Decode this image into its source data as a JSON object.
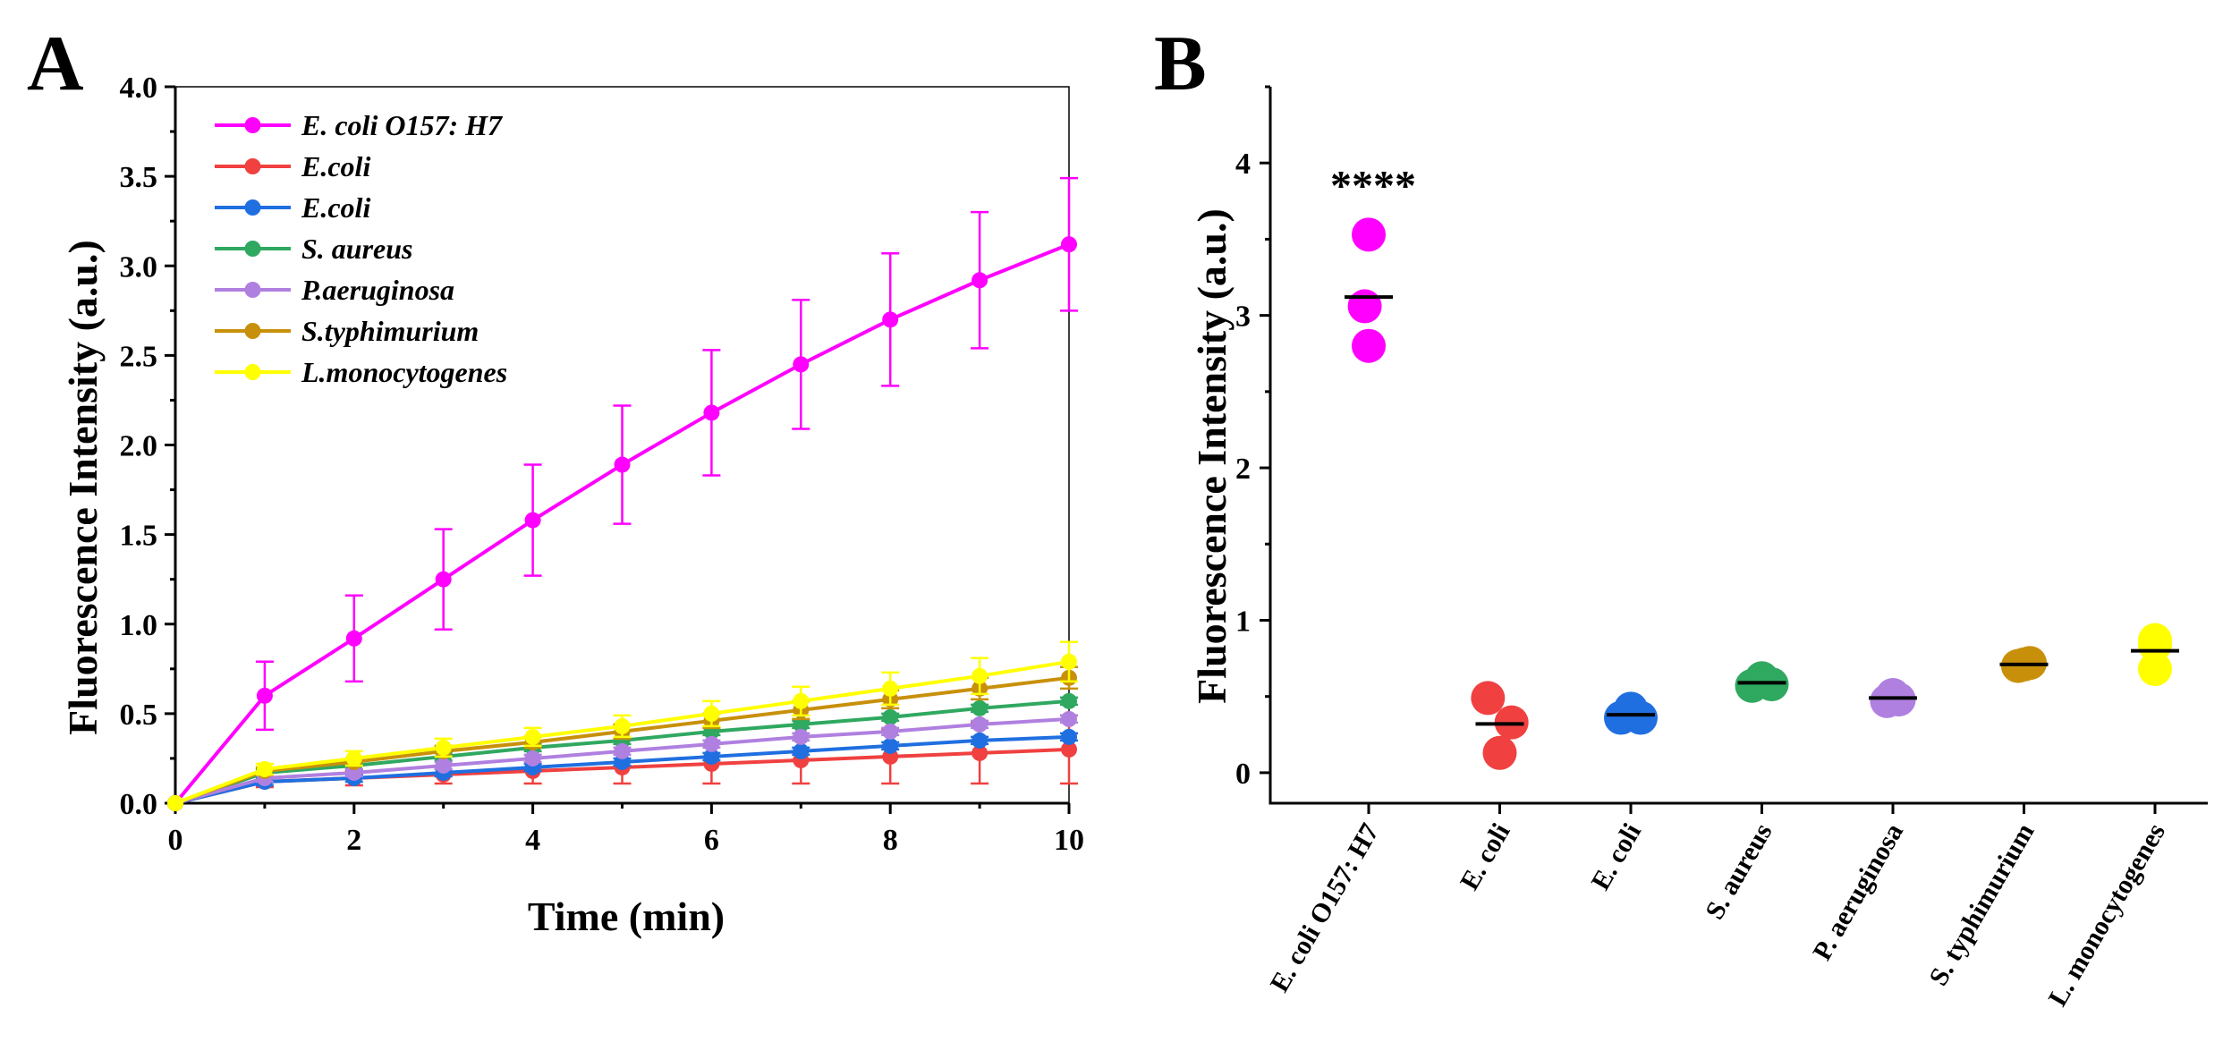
{
  "panels": {
    "a": {
      "label": "A"
    },
    "b": {
      "label": "B"
    }
  },
  "colors": {
    "magenta": "#ff00ff",
    "red": "#f04040",
    "blue": "#1f6fe0",
    "green": "#2fa860",
    "purple": "#b080e0",
    "gold": "#c8900a",
    "yellow": "#ffff00"
  },
  "chart_data": [
    {
      "id": "A",
      "type": "line",
      "title": "",
      "xlabel": "Time (min)",
      "ylabel": "Fluorescence Intensity (a.u.)",
      "xlim": [
        0,
        10
      ],
      "ylim": [
        0,
        4.0
      ],
      "xticks": [
        0,
        2,
        4,
        6,
        8,
        10
      ],
      "xtick_labels": [
        "0",
        "2",
        "4",
        "6",
        "8",
        "10"
      ],
      "yticks": [
        0,
        0.5,
        1.0,
        1.5,
        2.0,
        2.5,
        3.0,
        3.5,
        4.0
      ],
      "ytick_labels": [
        "0.0",
        "0.5",
        "1.0",
        "1.5",
        "2.0",
        "2.5",
        "3.0",
        "3.5",
        "4.0"
      ],
      "legend_position": "top-left",
      "x": [
        0,
        1,
        2,
        3,
        4,
        5,
        6,
        7,
        8,
        9,
        10
      ],
      "series": [
        {
          "name": "E. coli O157: H7",
          "color": "#ff00ff",
          "values": [
            0,
            0.6,
            0.92,
            1.25,
            1.58,
            1.89,
            2.18,
            2.45,
            2.7,
            2.92,
            3.12
          ],
          "errors": [
            0,
            0.19,
            0.24,
            0.28,
            0.31,
            0.33,
            0.35,
            0.36,
            0.37,
            0.38,
            0.37
          ]
        },
        {
          "name": "E.coli",
          "color": "#f04040",
          "values": [
            0,
            0.12,
            0.14,
            0.16,
            0.18,
            0.2,
            0.22,
            0.24,
            0.26,
            0.28,
            0.3
          ],
          "errors": [
            0,
            0.03,
            0.04,
            0.05,
            0.07,
            0.09,
            0.11,
            0.13,
            0.15,
            0.17,
            0.19
          ]
        },
        {
          "name": "E.coli",
          "color": "#1f6fe0",
          "values": [
            0,
            0.12,
            0.14,
            0.17,
            0.2,
            0.23,
            0.26,
            0.29,
            0.32,
            0.35,
            0.37
          ],
          "errors": [
            0,
            0.02,
            0.02,
            0.02,
            0.02,
            0.02,
            0.02,
            0.02,
            0.02,
            0.02,
            0.02
          ]
        },
        {
          "name": "S. aureus",
          "color": "#2fa860",
          "values": [
            0,
            0.17,
            0.21,
            0.26,
            0.31,
            0.35,
            0.4,
            0.44,
            0.48,
            0.53,
            0.57
          ],
          "errors": [
            0,
            0.02,
            0.02,
            0.02,
            0.02,
            0.02,
            0.02,
            0.02,
            0.02,
            0.02,
            0.02
          ]
        },
        {
          "name": "P.aeruginosa",
          "color": "#b080e0",
          "values": [
            0,
            0.14,
            0.17,
            0.21,
            0.25,
            0.29,
            0.33,
            0.37,
            0.4,
            0.44,
            0.47
          ],
          "errors": [
            0,
            0.02,
            0.02,
            0.02,
            0.02,
            0.02,
            0.02,
            0.02,
            0.02,
            0.02,
            0.02
          ]
        },
        {
          "name": "S.typhimurium",
          "color": "#c8900a",
          "values": [
            0,
            0.18,
            0.23,
            0.29,
            0.34,
            0.4,
            0.46,
            0.52,
            0.58,
            0.64,
            0.7
          ],
          "errors": [
            0,
            0.02,
            0.02,
            0.03,
            0.03,
            0.04,
            0.04,
            0.05,
            0.05,
            0.06,
            0.06
          ]
        },
        {
          "name": "L.monocytogenes",
          "color": "#ffff00",
          "values": [
            0,
            0.19,
            0.25,
            0.31,
            0.37,
            0.43,
            0.5,
            0.57,
            0.64,
            0.71,
            0.79
          ],
          "errors": [
            0,
            0.03,
            0.04,
            0.05,
            0.05,
            0.06,
            0.07,
            0.08,
            0.09,
            0.1,
            0.11
          ]
        }
      ]
    },
    {
      "id": "B",
      "type": "scatter",
      "title": "",
      "xlabel": "",
      "ylabel": "Fluorescence Intensity (a.u.)",
      "ylim": [
        -0.2,
        4.5
      ],
      "yticks": [
        0,
        1,
        2,
        3,
        4
      ],
      "ytick_labels": [
        "0",
        "1",
        "2",
        "3",
        "4"
      ],
      "significance": {
        "category": "E. coli O157: H7",
        "label": "****",
        "y": 3.9
      },
      "categories": [
        "E. coli O157: H7",
        "E. coli",
        "E. coli",
        "S. aureus",
        "P. aeruginosa",
        "S. typhimurium",
        "L. monocytogenes"
      ],
      "groups": [
        {
          "category": "E. coli O157: H7",
          "color": "#ff00ff",
          "mean": 3.12,
          "points": [
            {
              "x": 0,
              "y": 3.53
            },
            {
              "x": -0.02,
              "y": 3.06
            },
            {
              "x": 0,
              "y": 2.8
            }
          ]
        },
        {
          "category": "E. coli",
          "color": "#f04040",
          "mean": 0.32,
          "points": [
            {
              "x": -0.06,
              "y": 0.49
            },
            {
              "x": 0.06,
              "y": 0.33
            },
            {
              "x": 0,
              "y": 0.13
            }
          ]
        },
        {
          "category": "E. coli",
          "color": "#1f6fe0",
          "mean": 0.38,
          "points": [
            {
              "x": -0.05,
              "y": 0.36
            },
            {
              "x": 0.05,
              "y": 0.36
            },
            {
              "x": 0,
              "y": 0.42
            }
          ]
        },
        {
          "category": "S. aureus",
          "color": "#2fa860",
          "mean": 0.59,
          "points": [
            {
              "x": -0.05,
              "y": 0.57
            },
            {
              "x": 0.05,
              "y": 0.58
            },
            {
              "x": 0,
              "y": 0.62
            }
          ]
        },
        {
          "category": "P. aeruginosa",
          "color": "#b080e0",
          "mean": 0.49,
          "points": [
            {
              "x": -0.03,
              "y": 0.47
            },
            {
              "x": 0.03,
              "y": 0.48
            },
            {
              "x": 0,
              "y": 0.51
            }
          ]
        },
        {
          "category": "S. typhimurium",
          "color": "#c8900a",
          "mean": 0.71,
          "points": [
            {
              "x": -0.03,
              "y": 0.7
            },
            {
              "x": 0.03,
              "y": 0.72
            },
            {
              "x": 0,
              "y": 0.71
            }
          ]
        },
        {
          "category": "L. monocytogenes",
          "color": "#ffff00",
          "mean": 0.8,
          "points": [
            {
              "x": 0,
              "y": 0.87
            },
            {
              "x": 0,
              "y": 0.68
            },
            {
              "x": 0,
              "y": 0.84
            }
          ]
        }
      ]
    }
  ]
}
